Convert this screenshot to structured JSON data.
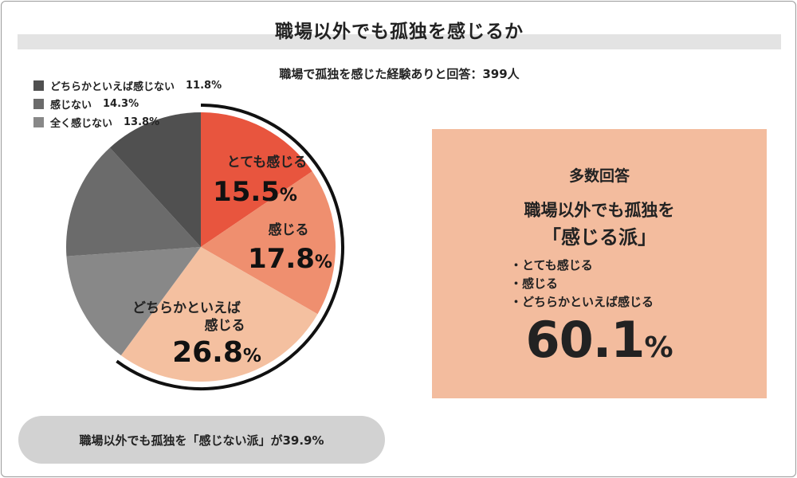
{
  "title": "職場以外でも孤独を感じるか",
  "subtitle": "職場で孤独を感じた経験ありと回答：399人",
  "colors": {
    "title_band": "#e3e3e3",
    "box_bg": "#f3bc9e",
    "pill_bg": "#d2d2d2",
    "arc": "#111111"
  },
  "chart_data": {
    "type": "pie",
    "unit": "%",
    "slices": [
      {
        "label": "とても感じる",
        "label_lines": [
          "とても感じる"
        ],
        "value": 15.5,
        "color": "#e8553e"
      },
      {
        "label": "感じる",
        "label_lines": [
          "感じる"
        ],
        "value": 17.8,
        "color": "#ef8f6f"
      },
      {
        "label": "どちらかといえば感じる",
        "label_lines": [
          "どちらかといえば",
          "感じる"
        ],
        "value": 26.8,
        "color": "#f4c0a0"
      },
      {
        "label": "全く感じない",
        "value": 13.8,
        "color": "#888888"
      },
      {
        "label": "感じない",
        "value": 14.3,
        "color": "#6b6b6b"
      },
      {
        "label": "どちらかといえば感じない",
        "value": 11.8,
        "color": "#505050"
      }
    ],
    "legend": [
      {
        "label": "どちらかといえば感じない",
        "value_text": "11.8%",
        "color": "#505050"
      },
      {
        "label": "感じない",
        "value_text": "14.3%",
        "color": "#6b6b6b"
      },
      {
        "label": "全く感じない",
        "value_text": "13.8%",
        "color": "#888888"
      }
    ],
    "legend_position": "top-left"
  },
  "box": {
    "heading": "多数回答",
    "line1": "職場以外でも孤独を",
    "line2": "「感じる派」",
    "items": [
      "・とても感じる",
      "・感じる",
      "・どちらかといえば感じる"
    ],
    "total_value": "60.1",
    "total_unit": "%"
  },
  "pill_text": "職場以外でも孤独を「感じない派」が39.9%"
}
